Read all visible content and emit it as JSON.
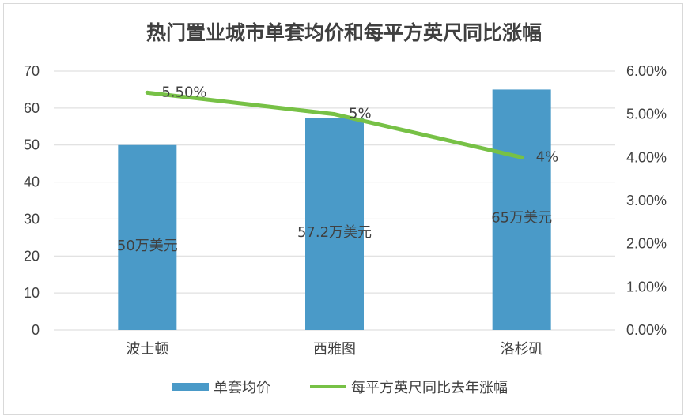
{
  "chart_data": {
    "type": "bar+line",
    "title": "热门置业城市单套均价和每平方英尺同比涨幅",
    "categories": [
      "波士顿",
      "西雅图",
      "洛杉矶"
    ],
    "series": [
      {
        "name": "单套均价",
        "kind": "bar",
        "axis": "left",
        "values": [
          50,
          57.2,
          65
        ],
        "labels": [
          "50万美元",
          "57.2万美元",
          "65万美元"
        ],
        "color": "#4a9ac8"
      },
      {
        "name": "每平方英尺同比去年涨幅",
        "kind": "line",
        "axis": "right",
        "values": [
          5.5,
          5.0,
          4.0
        ],
        "labels": [
          "5.50%",
          "5%",
          "4%"
        ],
        "color": "#77c146"
      }
    ],
    "y_left": {
      "ylim": [
        0,
        70
      ],
      "ticks": [
        "0",
        "10",
        "20",
        "30",
        "40",
        "50",
        "60",
        "70"
      ]
    },
    "y_right": {
      "ylim": [
        0,
        6
      ],
      "ticks": [
        "0.00%",
        "1.00%",
        "2.00%",
        "3.00%",
        "4.00%",
        "5.00%",
        "6.00%"
      ]
    },
    "grid": true,
    "legend_position": "bottom"
  }
}
